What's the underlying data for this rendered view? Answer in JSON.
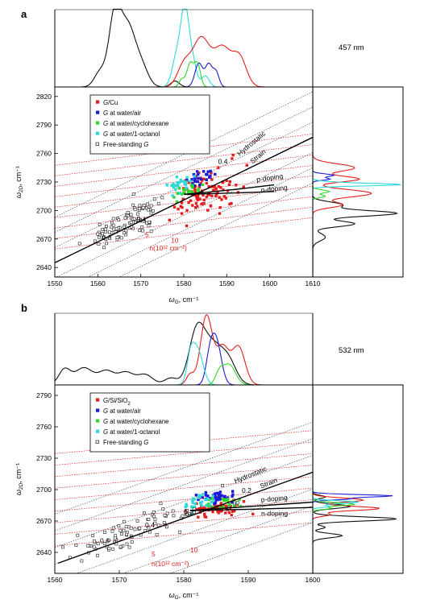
{
  "panels": [
    {
      "panel_label": "a",
      "wavelength": "457 nm",
      "chart_data": {
        "type": "scatter",
        "xlabel_sym": "ω",
        "xlabel_sub": "G",
        "xlabel_unit": ", cm⁻¹",
        "ylabel_sym": "ω",
        "ylabel_sub": "2D",
        "ylabel_unit": ", cm⁻¹",
        "xlim": [
          1550,
          1610
        ],
        "ylim": [
          2630,
          2830
        ],
        "xticks": [
          1550,
          1560,
          1570,
          1580,
          1590,
          1600,
          1610
        ],
        "yticks": [
          2640,
          2670,
          2700,
          2730,
          2760,
          2790,
          2820
        ],
        "legend": [
          {
            "label_html": "<tspan font-style='italic'>G</tspan>/Cu",
            "color": "#e41e1e",
            "marker": "filled"
          },
          {
            "label_html": "<tspan font-style='italic'>G</tspan> at water/air",
            "color": "#1a1ad6",
            "marker": "filled"
          },
          {
            "label_html": "<tspan font-style='italic'>G</tspan> at water/cyclohexane",
            "color": "#33d62a",
            "marker": "filled"
          },
          {
            "label_html": "<tspan font-style='italic'>G</tspan> at water/1-octanol",
            "color": "#2ed9d9",
            "marker": "filled"
          },
          {
            "label_html": "Free-standing <tspan font-style='italic'>G</tspan>",
            "color": "#222222",
            "marker": "open"
          }
        ],
        "strain_line": {
          "x0": 1550,
          "y0": 2645,
          "slope": 2.2
        },
        "strain_labels": [
          {
            "text": "0.4",
            "x": 1569,
            "y": 2688
          },
          {
            "text": "0.8",
            "x": 1561,
            "y": 2669
          },
          {
            "text": "0.4",
            "x": 1588,
            "y": 2749
          }
        ],
        "doping_labels": [
          {
            "text": "5",
            "x": 1571,
            "y": 2672
          },
          {
            "text": "10",
            "x": 1577,
            "y": 2666
          }
        ],
        "doping_unit": "n(10¹² cm⁻²)",
        "annotations": {
          "hydrostatic": "Hydrostatic",
          "strain": "Strain",
          "pdoping": "p-doping",
          "ndoping": "n-doping"
        },
        "series": [
          {
            "name": "G/Cu",
            "color": "#e41e1e",
            "cx": 1585,
            "cy": 2718,
            "n": 95,
            "sx": 3.8,
            "sy": 14,
            "corr": 0.55
          },
          {
            "name": "G at water/air",
            "color": "#1a1ad6",
            "cx": 1584,
            "cy": 2734,
            "n": 24,
            "sx": 1.8,
            "sy": 5,
            "corr": 0.5
          },
          {
            "name": "G at water/cyclohexane",
            "color": "#33d62a",
            "cx": 1581,
            "cy": 2721,
            "n": 26,
            "sx": 1.6,
            "sy": 5,
            "corr": 0.4
          },
          {
            "name": "G at water/1-octanol",
            "color": "#2ed9d9",
            "cx": 1579,
            "cy": 2727,
            "n": 26,
            "sx": 1.6,
            "sy": 4,
            "corr": 0.3
          },
          {
            "name": "Free-standing G",
            "color": "#222222",
            "cx": 1566,
            "cy": 2686,
            "n": 90,
            "sx": 4.5,
            "sy": 13,
            "corr": 0.75,
            "open": true
          }
        ],
        "top_curves": [
          {
            "color": "#111111",
            "peaks": [
              [
                1564,
                1.0,
                1.4
              ],
              [
                1567,
                0.75,
                1.6
              ],
              [
                1570,
                0.3,
                1.6
              ],
              [
                1560.5,
                0.2,
                1.3
              ],
              [
                1578,
                0.08,
                1.0
              ]
            ]
          },
          {
            "color": "#2ed9d9",
            "peaks": [
              [
                1580.3,
                0.95,
                0.9
              ],
              [
                1578.5,
                0.45,
                1.1
              ],
              [
                1582,
                0.35,
                0.9
              ],
              [
                1585,
                0.15,
                0.9
              ]
            ]
          },
          {
            "color": "#e41e1e",
            "peaks": [
              [
                1580,
                0.28,
                1.5
              ],
              [
                1584,
                0.65,
                2.0
              ],
              [
                1589,
                0.52,
                2.0
              ],
              [
                1593,
                0.38,
                1.6
              ]
            ]
          },
          {
            "color": "#1a1ad6",
            "peaks": [
              [
                1583.5,
                0.32,
                0.9
              ],
              [
                1585.8,
                0.3,
                0.8
              ],
              [
                1587.5,
                0.2,
                0.7
              ]
            ]
          },
          {
            "color": "#33d62a",
            "peaks": [
              [
                1581.5,
                0.32,
                0.8
              ],
              [
                1583.2,
                0.3,
                0.7
              ],
              [
                1579.5,
                0.1,
                0.6
              ]
            ]
          }
        ],
        "right_curves": [
          {
            "color": "#111111",
            "peaks": [
              [
                2697,
                1.0,
                3.0
              ],
              [
                2686,
                0.5,
                3.0
              ],
              [
                2706,
                0.35,
                3.0
              ],
              [
                2672,
                0.15,
                4.0
              ]
            ]
          },
          {
            "color": "#e41e1e",
            "peaks": [
              [
                2745,
                0.5,
                4
              ],
              [
                2733,
                0.55,
                3
              ],
              [
                2718,
                0.7,
                4
              ],
              [
                2706,
                0.35,
                3
              ]
            ]
          },
          {
            "color": "#1a1ad6",
            "peaks": [
              [
                2737,
                0.25,
                1.5
              ],
              [
                2733,
                0.2,
                1.2
              ]
            ]
          },
          {
            "color": "#33d62a",
            "peaks": [
              [
                2720,
                0.2,
                1.6
              ],
              [
                2715,
                0.15,
                1.4
              ]
            ]
          },
          {
            "color": "#2ed9d9",
            "peaks": [
              [
                2727,
                0.95,
                1.2
              ],
              [
                2729,
                0.3,
                1.5
              ]
            ]
          }
        ]
      }
    },
    {
      "panel_label": "b",
      "wavelength": "532 nm",
      "chart_data": {
        "type": "scatter",
        "xlabel_sym": "ω",
        "xlabel_sub": "G",
        "xlabel_unit": ", cm⁻¹",
        "ylabel_sym": "ω",
        "ylabel_sub": "2D",
        "ylabel_unit": ", cm⁻¹",
        "xlim": [
          1560,
          1600
        ],
        "ylim": [
          2620,
          2800
        ],
        "xticks": [
          1560,
          1570,
          1580,
          1590,
          1600
        ],
        "yticks": [
          2640,
          2670,
          2700,
          2730,
          2760,
          2790
        ],
        "legend": [
          {
            "label_html": "<tspan font-style='italic'>G</tspan>/Si/SiO<tspan baseline-shift='sub' font-size='6'>2</tspan>",
            "color": "#e41e1e",
            "marker": "filled"
          },
          {
            "label_html": "<tspan font-style='italic'>G</tspan> at water/air",
            "color": "#1a1ad6",
            "marker": "filled"
          },
          {
            "label_html": "<tspan font-style='italic'>G</tspan> at water/cyclohexane",
            "color": "#33d62a",
            "marker": "filled"
          },
          {
            "label_html": "<tspan font-style='italic'>G</tspan> at water/1-octanol",
            "color": "#2ed9d9",
            "marker": "filled"
          },
          {
            "label_html": "Free-standing <tspan font-style='italic'>G</tspan>",
            "color": "#222222",
            "marker": "open"
          }
        ],
        "strain_line": {
          "x0": 1562,
          "y0": 2633,
          "slope": 2.2
        },
        "strain_labels": [
          {
            "text": "0.2",
            "x": 1589,
            "y": 2697
          },
          {
            "text": "0.4",
            "x": 1574,
            "y": 2664
          },
          {
            "text": "0.6",
            "x": 1567,
            "y": 2649
          },
          {
            "text": "0.2",
            "x": 1580,
            "y": 2676
          }
        ],
        "doping_labels": [
          {
            "text": "5",
            "x": 1575,
            "y": 2636
          },
          {
            "text": "10",
            "x": 1581,
            "y": 2640
          }
        ],
        "doping_unit": "n(10¹² cm⁻²)",
        "annotations": {
          "hydrostatic": "Hydrostatic",
          "strain": "Strain",
          "pdoping": "p-doping",
          "ndoping": "n-doping"
        },
        "series": [
          {
            "name": "G/Si/SiO2",
            "color": "#e41e1e",
            "cx": 1585,
            "cy": 2682,
            "n": 70,
            "sx": 2.3,
            "sy": 4,
            "corr": 0.3
          },
          {
            "name": "G at water/air",
            "color": "#1a1ad6",
            "cx": 1585.5,
            "cy": 2693,
            "n": 45,
            "sx": 1.3,
            "sy": 2.5,
            "corr": 0.2
          },
          {
            "name": "G at water/cyclohexane",
            "color": "#33d62a",
            "cx": 1586,
            "cy": 2686,
            "n": 20,
            "sx": 1.3,
            "sy": 2.5,
            "corr": 0.2
          },
          {
            "name": "G at water/1-octanol",
            "color": "#2ed9d9",
            "cx": 1582.5,
            "cy": 2688,
            "n": 28,
            "sx": 1.5,
            "sy": 3,
            "corr": 0.2
          },
          {
            "name": "Free-standing G",
            "color": "#222222",
            "cx": 1574,
            "cy": 2664,
            "n": 90,
            "sx": 5.5,
            "sy": 13,
            "corr": 0.85,
            "open": true
          }
        ],
        "top_curves": [
          {
            "color": "#111111",
            "peaks": [
              [
                1561.5,
                0.22,
                0.9
              ],
              [
                1564.5,
                0.25,
                1.4
              ],
              [
                1568,
                0.2,
                1.2
              ],
              [
                1571,
                0.18,
                1.2
              ],
              [
                1574,
                0.15,
                1.2
              ],
              [
                1578,
                0.1,
                1.0
              ],
              [
                1582,
                0.75,
                1.2
              ],
              [
                1584.5,
                0.55,
                1.5
              ],
              [
                1587,
                0.3,
                1.2
              ]
            ]
          },
          {
            "color": "#e41e1e",
            "peaks": [
              [
                1583.5,
                1.0,
                0.9
              ],
              [
                1586,
                0.55,
                1.0
              ],
              [
                1588.5,
                0.55,
                1.0
              ],
              [
                1581,
                0.15,
                0.6
              ]
            ]
          },
          {
            "color": "#1a1ad6",
            "peaks": [
              [
                1585,
                0.65,
                0.8
              ],
              [
                1584,
                0.3,
                0.6
              ]
            ]
          },
          {
            "color": "#2ed9d9",
            "peaks": [
              [
                1582,
                0.55,
                0.9
              ],
              [
                1581,
                0.25,
                0.5
              ]
            ]
          },
          {
            "color": "#33d62a",
            "peaks": [
              [
                1587,
                0.3,
                1.0
              ],
              [
                1585.5,
                0.15,
                0.6
              ]
            ]
          }
        ],
        "right_curves": [
          {
            "color": "#111111",
            "peaks": [
              [
                2672,
                1.0,
                2.0
              ],
              [
                2684,
                0.45,
                2.0
              ],
              [
                2656,
                0.35,
                2.0
              ],
              [
                2664,
                0.15,
                1.5
              ],
              [
                2693,
                0.15,
                1.5
              ]
            ]
          },
          {
            "color": "#e41e1e",
            "peaks": [
              [
                2682,
                0.8,
                2.0
              ],
              [
                2690,
                0.6,
                2.0
              ],
              [
                2676,
                0.2,
                1.5
              ]
            ]
          },
          {
            "color": "#1a1ad6",
            "peaks": [
              [
                2694,
                0.95,
                1.2
              ],
              [
                2691,
                0.4,
                1.0
              ]
            ]
          },
          {
            "color": "#33d62a",
            "peaks": [
              [
                2686,
                0.5,
                1.5
              ],
              [
                2682,
                0.2,
                1.0
              ]
            ]
          },
          {
            "color": "#2ed9d9",
            "peaks": [
              [
                2688,
                0.55,
                1.3
              ],
              [
                2684,
                0.2,
                1.0
              ]
            ]
          }
        ]
      }
    }
  ]
}
